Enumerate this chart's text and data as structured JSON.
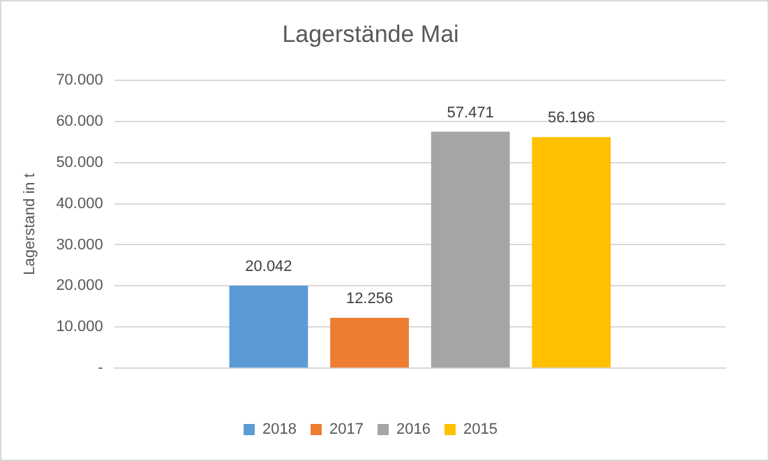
{
  "chart_data": {
    "type": "bar",
    "title": "Lagerstände Mai",
    "ylabel": "Lagerstand in t",
    "categories": [
      null
    ],
    "series": [
      {
        "name": "2018",
        "color": "#5b9bd5",
        "values": [
          20042
        ],
        "value_labels": [
          "20.042"
        ]
      },
      {
        "name": "2017",
        "color": "#ed7d31",
        "values": [
          12256
        ],
        "value_labels": [
          "12.256"
        ]
      },
      {
        "name": "2016",
        "color": "#a5a5a5",
        "values": [
          57471
        ],
        "value_labels": [
          "57.471"
        ]
      },
      {
        "name": "2015",
        "color": "#ffc000",
        "values": [
          56196
        ],
        "value_labels": [
          "56.196"
        ]
      }
    ],
    "ylim": [
      0,
      70000
    ],
    "yticks": [
      {
        "value": 0,
        "label": "-"
      },
      {
        "value": 10000,
        "label": "10.000"
      },
      {
        "value": 20000,
        "label": "20.000"
      },
      {
        "value": 30000,
        "label": "30.000"
      },
      {
        "value": 40000,
        "label": "40.000"
      },
      {
        "value": 50000,
        "label": "50.000"
      },
      {
        "value": 60000,
        "label": "60.000"
      },
      {
        "value": 70000,
        "label": "70.000"
      }
    ],
    "grid": "y",
    "legend": "bottom"
  }
}
